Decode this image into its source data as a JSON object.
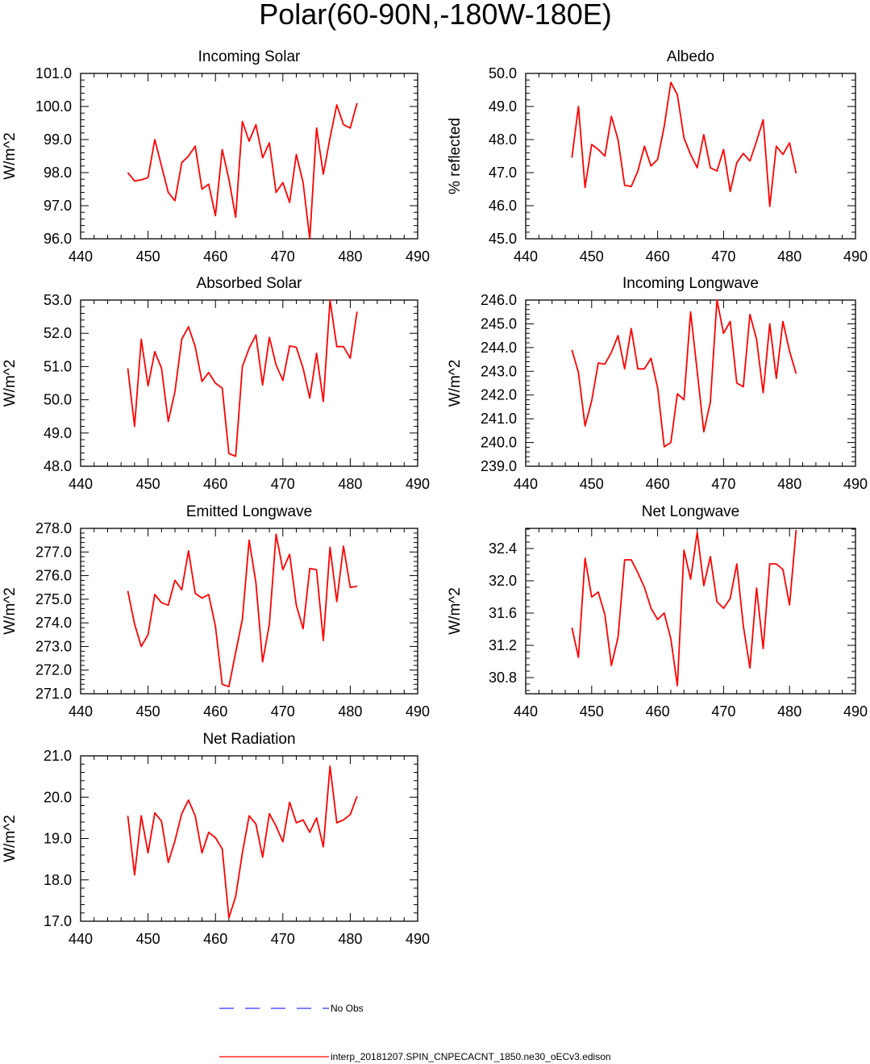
{
  "title": "Polar(60-90N,-180W-180E)",
  "colors": {
    "model": "#ff0000",
    "obs": "#3333ff",
    "axis": "#000000"
  },
  "legend": [
    {
      "label": "No Obs",
      "color": "#3333ff",
      "dash": true
    },
    {
      "label": "interp_20181207.SPIN_CNPECACNT_1850.ne30_oECv3.edison",
      "color": "#ff0000",
      "dash": false
    }
  ],
  "chart_data": [
    {
      "type": "line",
      "title": "Incoming Solar",
      "ylabel": "W/m^2",
      "xlim": [
        440,
        490
      ],
      "xticks": [
        440,
        450,
        460,
        470,
        480,
        490
      ],
      "ylim": [
        96.0,
        101.0
      ],
      "yticks": [
        96.0,
        97.0,
        98.0,
        99.0,
        100.0,
        101.0
      ],
      "ytick_labels": [
        "96.0",
        "97.0",
        "98.0",
        "99.0",
        "100.0",
        "101.0"
      ],
      "x": [
        447,
        448,
        449,
        450,
        451,
        452,
        453,
        454,
        455,
        456,
        457,
        458,
        459,
        460,
        461,
        462,
        463,
        464,
        465,
        466,
        467,
        468,
        469,
        470,
        471,
        472,
        473,
        474,
        475,
        476,
        477,
        478,
        479,
        480,
        481
      ],
      "series": [
        {
          "name": "interp_20181207.SPIN_CNPECACNT_1850.ne30_oECv3.edison",
          "values": [
            98.0,
            97.75,
            97.78,
            97.85,
            99.0,
            98.2,
            97.4,
            97.15,
            98.3,
            98.5,
            98.8,
            97.5,
            97.65,
            96.7,
            98.7,
            97.8,
            96.65,
            99.55,
            98.95,
            99.45,
            98.45,
            98.9,
            97.4,
            97.7,
            97.1,
            98.55,
            97.7,
            96.0,
            99.35,
            97.95,
            99.05,
            100.05,
            99.45,
            99.35,
            100.1
          ]
        }
      ]
    },
    {
      "type": "line",
      "title": "Albedo",
      "ylabel": "% reflected",
      "xlim": [
        440,
        490
      ],
      "xticks": [
        440,
        450,
        460,
        470,
        480,
        490
      ],
      "ylim": [
        45.0,
        50.0
      ],
      "yticks": [
        45.0,
        46.0,
        47.0,
        48.0,
        49.0,
        50.0
      ],
      "ytick_labels": [
        "45.0",
        "46.0",
        "47.0",
        "48.0",
        "49.0",
        "50.0"
      ],
      "x": [
        447,
        448,
        449,
        450,
        451,
        452,
        453,
        454,
        455,
        456,
        457,
        458,
        459,
        460,
        461,
        462,
        463,
        464,
        465,
        466,
        467,
        468,
        469,
        470,
        471,
        472,
        473,
        474,
        475,
        476,
        477,
        478,
        479,
        480,
        481
      ],
      "series": [
        {
          "name": "interp_20181207.SPIN_CNPECACNT_1850.ne30_oECv3.edison",
          "values": [
            47.45,
            49.0,
            46.55,
            47.85,
            47.7,
            47.5,
            48.7,
            48.0,
            46.62,
            46.58,
            47.05,
            47.8,
            47.2,
            47.4,
            48.4,
            49.73,
            49.35,
            48.05,
            47.55,
            47.15,
            48.15,
            47.15,
            47.05,
            47.7,
            46.43,
            47.3,
            47.58,
            47.35,
            47.95,
            48.6,
            45.98,
            47.8,
            47.55,
            47.9,
            46.98
          ]
        }
      ]
    },
    {
      "type": "line",
      "title": "Absorbed Solar",
      "ylabel": "W/m^2",
      "xlim": [
        440,
        490
      ],
      "xticks": [
        440,
        450,
        460,
        470,
        480,
        490
      ],
      "ylim": [
        48.0,
        53.0
      ],
      "yticks": [
        48.0,
        49.0,
        50.0,
        51.0,
        52.0,
        53.0
      ],
      "ytick_labels": [
        "48.0",
        "49.0",
        "50.0",
        "51.0",
        "52.0",
        "53.0"
      ],
      "x": [
        447,
        448,
        449,
        450,
        451,
        452,
        453,
        454,
        455,
        456,
        457,
        458,
        459,
        460,
        461,
        462,
        463,
        464,
        465,
        466,
        467,
        468,
        469,
        470,
        471,
        472,
        473,
        474,
        475,
        476,
        477,
        478,
        479,
        480,
        481
      ],
      "series": [
        {
          "name": "interp_20181207.SPIN_CNPECACNT_1850.ne30_oECv3.edison",
          "values": [
            50.95,
            49.2,
            51.82,
            50.42,
            51.45,
            50.95,
            49.35,
            50.25,
            51.82,
            52.2,
            51.6,
            50.55,
            50.82,
            50.5,
            50.35,
            48.38,
            48.3,
            51.0,
            51.55,
            51.95,
            50.45,
            51.88,
            51.05,
            50.58,
            51.62,
            51.58,
            50.95,
            50.05,
            51.4,
            49.95,
            53.0,
            51.6,
            51.6,
            51.25,
            52.65
          ]
        }
      ]
    },
    {
      "type": "line",
      "title": "Incoming Longwave",
      "ylabel": "W/m^2",
      "xlim": [
        440,
        490
      ],
      "xticks": [
        440,
        450,
        460,
        470,
        480,
        490
      ],
      "ylim": [
        239.0,
        246.0
      ],
      "yticks": [
        239.0,
        240.0,
        241.0,
        242.0,
        243.0,
        244.0,
        245.0,
        246.0
      ],
      "ytick_labels": [
        "239.0",
        "240.0",
        "241.0",
        "242.0",
        "243.0",
        "244.0",
        "245.0",
        "246.0"
      ],
      "x": [
        447,
        448,
        449,
        450,
        451,
        452,
        453,
        454,
        455,
        456,
        457,
        458,
        459,
        460,
        461,
        462,
        463,
        464,
        465,
        466,
        467,
        468,
        469,
        470,
        471,
        472,
        473,
        474,
        475,
        476,
        477,
        478,
        479,
        480,
        481
      ],
      "series": [
        {
          "name": "interp_20181207.SPIN_CNPECACNT_1850.ne30_oECv3.edison",
          "values": [
            243.9,
            242.95,
            240.7,
            241.75,
            243.35,
            243.3,
            243.8,
            244.5,
            243.1,
            244.8,
            243.1,
            243.1,
            243.55,
            242.3,
            239.82,
            240.0,
            242.05,
            241.8,
            245.5,
            243.0,
            240.45,
            241.7,
            246.0,
            244.6,
            245.1,
            242.5,
            242.35,
            245.4,
            244.35,
            242.1,
            245.0,
            242.7,
            245.1,
            243.85,
            242.9
          ]
        }
      ]
    },
    {
      "type": "line",
      "title": "Emitted Longwave",
      "ylabel": "W/m^2",
      "xlim": [
        440,
        490
      ],
      "xticks": [
        440,
        450,
        460,
        470,
        480,
        490
      ],
      "ylim": [
        271.0,
        278.0
      ],
      "yticks": [
        271.0,
        272.0,
        273.0,
        274.0,
        275.0,
        276.0,
        277.0,
        278.0
      ],
      "ytick_labels": [
        "271.0",
        "272.0",
        "273.0",
        "274.0",
        "275.0",
        "276.0",
        "277.0",
        "278.0"
      ],
      "x": [
        447,
        448,
        449,
        450,
        451,
        452,
        453,
        454,
        455,
        456,
        457,
        458,
        459,
        460,
        461,
        462,
        463,
        464,
        465,
        466,
        467,
        468,
        469,
        470,
        471,
        472,
        473,
        474,
        475,
        476,
        477,
        478,
        479,
        480,
        481
      ],
      "series": [
        {
          "name": "interp_20181207.SPIN_CNPECACNT_1850.ne30_oECv3.edison",
          "values": [
            275.35,
            273.95,
            273.0,
            273.5,
            275.2,
            274.85,
            274.75,
            275.8,
            275.4,
            277.05,
            275.25,
            275.05,
            275.2,
            273.85,
            271.4,
            271.3,
            272.75,
            274.15,
            277.5,
            275.7,
            272.35,
            273.95,
            277.75,
            276.25,
            276.9,
            274.75,
            273.75,
            276.3,
            276.25,
            273.25,
            277.2,
            274.9,
            277.25,
            275.5,
            275.55
          ]
        }
      ]
    },
    {
      "type": "line",
      "title": "Net Longwave",
      "ylabel": "W/m^2",
      "xlim": [
        440,
        490
      ],
      "xticks": [
        440,
        450,
        460,
        470,
        480,
        490
      ],
      "ylim": [
        30.6,
        32.65
      ],
      "yticks": [
        30.8,
        31.2,
        31.6,
        32.0,
        32.4
      ],
      "ytick_labels": [
        "30.8",
        "31.2",
        "31.6",
        "32.0",
        "32.4"
      ],
      "x": [
        447,
        448,
        449,
        450,
        451,
        452,
        453,
        454,
        455,
        456,
        457,
        458,
        459,
        460,
        461,
        462,
        463,
        464,
        465,
        466,
        467,
        468,
        469,
        470,
        471,
        472,
        473,
        474,
        475,
        476,
        477,
        478,
        479,
        480,
        481
      ],
      "series": [
        {
          "name": "interp_20181207.SPIN_CNPECACNT_1850.ne30_oECv3.edison",
          "values": [
            31.42,
            31.05,
            32.28,
            31.8,
            31.86,
            31.58,
            30.95,
            31.3,
            32.26,
            32.26,
            32.1,
            31.92,
            31.66,
            31.52,
            31.6,
            31.28,
            30.7,
            32.38,
            32.02,
            32.6,
            31.94,
            32.3,
            31.74,
            31.66,
            31.78,
            32.21,
            31.44,
            30.92,
            31.91,
            31.16,
            32.21,
            32.21,
            32.14,
            31.7,
            32.63
          ]
        }
      ]
    },
    {
      "type": "line",
      "title": "Net Radiation",
      "ylabel": "W/m^2",
      "xlim": [
        440,
        490
      ],
      "xticks": [
        440,
        450,
        460,
        470,
        480,
        490
      ],
      "ylim": [
        17.0,
        21.0
      ],
      "yticks": [
        17.0,
        18.0,
        19.0,
        20.0,
        21.0
      ],
      "ytick_labels": [
        "17.0",
        "18.0",
        "19.0",
        "20.0",
        "21.0"
      ],
      "x": [
        447,
        448,
        449,
        450,
        451,
        452,
        453,
        454,
        455,
        456,
        457,
        458,
        459,
        460,
        461,
        462,
        463,
        464,
        465,
        466,
        467,
        468,
        469,
        470,
        471,
        472,
        473,
        474,
        475,
        476,
        477,
        478,
        479,
        480,
        481
      ],
      "series": [
        {
          "name": "interp_20181207.SPIN_CNPECACNT_1850.ne30_oECv3.edison",
          "values": [
            19.55,
            18.12,
            19.55,
            18.65,
            19.62,
            19.42,
            18.42,
            18.95,
            19.6,
            19.93,
            19.55,
            18.65,
            19.15,
            19.02,
            18.75,
            17.08,
            17.6,
            18.65,
            19.55,
            19.35,
            18.55,
            19.6,
            19.3,
            18.92,
            19.88,
            19.38,
            19.45,
            19.15,
            19.5,
            18.8,
            20.75,
            19.38,
            19.45,
            19.58,
            20.02
          ]
        }
      ]
    }
  ]
}
